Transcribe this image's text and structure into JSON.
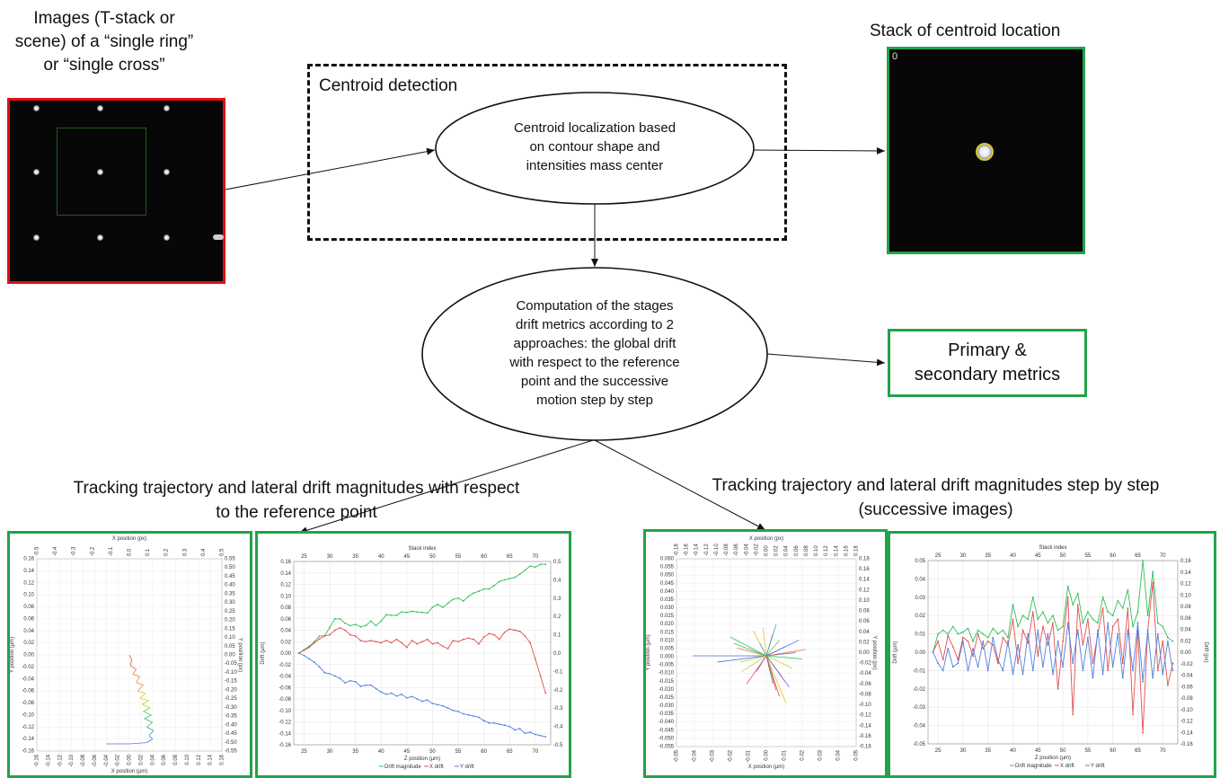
{
  "labels": {
    "input_images": [
      "Images (T-stack or",
      "scene) of a “single ring”",
      "or “single cross”"
    ],
    "centroid_stack": "Stack of centroid location",
    "centroid_detection": "Centroid detection",
    "localization": [
      "Centroid localization based",
      "on contour shape and",
      "intensities mass center"
    ],
    "computation": [
      "Computation of the stages",
      "drift metrics according to 2",
      "approaches: the global drift",
      "with respect to the reference",
      "point and the successive",
      "motion step by step"
    ],
    "metrics": [
      "Primary &",
      "secondary metrics"
    ],
    "tracking_reference": [
      "Tracking trajectory and lateral drift magnitudes with respect",
      "to the reference point"
    ],
    "tracking_step": [
      "Tracking trajectory and lateral drift magnitudes step by step",
      "(successive images)"
    ],
    "frame_counter": "0"
  },
  "colors": {
    "red_border": "#e01010",
    "green_border": "#22a34a",
    "drift_magnitude": "#2fbf5a",
    "x_drift": "#e05050",
    "y_drift": "#4f7fe0"
  },
  "plots": {
    "scatter_ref": {
      "top_axis_label": "X position (px)",
      "bottom_axis_label": "X position (µm)",
      "left_axis_label": "Y position (µm)",
      "right_axis_label": "Y position (px)",
      "top_ticks": [
        "-0.5",
        "-0.4",
        "-0.3",
        "-0.2",
        "-0.1",
        "0.0",
        "0.1",
        "0.2",
        "0.3",
        "0.4",
        "0.5"
      ],
      "bottom_ticks": [
        "-0.16",
        "-0.14",
        "-0.12",
        "-0.10",
        "-0.08",
        "-0.06",
        "-0.04",
        "-0.02",
        "0.00",
        "0.02",
        "0.04",
        "0.06",
        "0.08",
        "0.10",
        "0.12",
        "0.14",
        "0.16"
      ],
      "left_ticks": [
        "0.16",
        "0.14",
        "0.12",
        "0.10",
        "0.08",
        "0.06",
        "0.04",
        "0.02",
        "0.00",
        "-0.02",
        "-0.04",
        "-0.06",
        "-0.08",
        "-0.10",
        "-0.12",
        "-0.14",
        "-0.16"
      ],
      "right_ticks": [
        "0.55",
        "0.50",
        "0.45",
        "0.40",
        "0.35",
        "0.30",
        "0.25",
        "0.20",
        "0.15",
        "0.10",
        "0.05",
        "0.00",
        "-0.05",
        "-0.10",
        "-0.15",
        "-0.20",
        "-0.25",
        "-0.30",
        "-0.35",
        "-0.40",
        "-0.45",
        "-0.50",
        "-0.55"
      ]
    },
    "line_ref": {
      "top_axis_label": "Stack index",
      "bottom_axis_label": "Z position (µm)",
      "left_axis_label": "Drift (µm)",
      "right_axis_label": "Drift (px)",
      "x_ticks": [
        "25",
        "30",
        "35",
        "40",
        "45",
        "50",
        "55",
        "60",
        "65",
        "70"
      ],
      "left_ticks": [
        "0.16",
        "0.14",
        "0.12",
        "0.10",
        "0.08",
        "0.06",
        "0.04",
        "0.02",
        "0.00",
        "-0.02",
        "-0.04",
        "-0.06",
        "-0.08",
        "-0.10",
        "-0.12",
        "-0.14",
        "-0.16"
      ],
      "right_ticks": [
        "0.5",
        "0.4",
        "0.3",
        "0.2",
        "0.1",
        "0.0",
        "-0.1",
        "-0.2",
        "-0.3",
        "-0.4",
        "-0.5"
      ],
      "legend": [
        "Drift magnitude",
        "X drift",
        "Y drift"
      ]
    },
    "scatter_step": {
      "top_axis_label": "X position (px)",
      "bottom_axis_label": "X position (µm)",
      "left_axis_label": "Y position (µm)",
      "right_axis_label": "Y position (px)",
      "top_ticks": [
        "-0.18",
        "-0.16",
        "-0.14",
        "-0.12",
        "-0.10",
        "-0.08",
        "-0.06",
        "-0.04",
        "-0.02",
        "0.00",
        "0.02",
        "0.04",
        "0.06",
        "0.08",
        "0.10",
        "0.12",
        "0.14",
        "0.16",
        "0.18"
      ],
      "bottom_ticks": [
        "-0.05",
        "-0.04",
        "-0.03",
        "-0.02",
        "-0.01",
        "0.00",
        "0.01",
        "0.02",
        "0.03",
        "0.04",
        "0.05"
      ],
      "left_ticks": [
        "0.060",
        "0.055",
        "0.050",
        "0.045",
        "0.040",
        "0.035",
        "0.030",
        "0.025",
        "0.020",
        "0.015",
        "0.010",
        "0.005",
        "0.000",
        "-0.005",
        "-0.010",
        "-0.015",
        "-0.020",
        "-0.025",
        "-0.030",
        "-0.035",
        "-0.040",
        "-0.045",
        "-0.050",
        "-0.055"
      ],
      "right_ticks": [
        "0.18",
        "0.16",
        "0.14",
        "0.12",
        "0.10",
        "0.08",
        "0.06",
        "0.04",
        "0.02",
        "0.00",
        "-0.02",
        "-0.04",
        "-0.06",
        "-0.08",
        "-0.10",
        "-0.12",
        "-0.14",
        "-0.16",
        "-0.18"
      ]
    },
    "line_step": {
      "top_axis_label": "Stack index",
      "bottom_axis_label": "Z position (µm)",
      "left_axis_label": "Drift (µm)",
      "right_axis_label": "Drift (px)",
      "x_ticks": [
        "25",
        "30",
        "35",
        "40",
        "45",
        "50",
        "55",
        "60",
        "65",
        "70"
      ],
      "left_ticks": [
        "0.05",
        "0.04",
        "0.03",
        "0.02",
        "0.01",
        "0.00",
        "-0.01",
        "-0.02",
        "-0.03",
        "-0.04",
        "-0.05"
      ],
      "right_ticks": [
        "0.16",
        "0.14",
        "0.12",
        "0.10",
        "0.08",
        "0.06",
        "0.04",
        "0.02",
        "0.00",
        "-0.02",
        "-0.04",
        "-0.06",
        "-0.08",
        "-0.10",
        "-0.12",
        "-0.14",
        "-0.16"
      ],
      "legend": [
        "Drift magnitude",
        "X drift",
        "Y drift"
      ]
    }
  },
  "chart_data": [
    {
      "type": "line",
      "x": [
        24,
        25,
        26,
        27,
        28,
        29,
        30,
        31,
        32,
        33,
        34,
        35,
        36,
        37,
        38,
        39,
        40,
        41,
        42,
        43,
        44,
        45,
        46,
        47,
        48,
        49,
        50,
        51,
        52,
        53,
        54,
        55,
        56,
        57,
        58,
        59,
        60,
        61,
        62,
        63,
        64,
        65,
        66,
        67,
        68,
        69,
        70,
        71,
        72
      ],
      "ylim": [
        -0.16,
        0.16
      ],
      "series": [
        {
          "name": "Drift magnitude",
          "values": [
            0.0,
            0.006,
            0.012,
            0.02,
            0.03,
            0.03,
            0.045,
            0.06,
            0.06,
            0.052,
            0.048,
            0.05,
            0.046,
            0.048,
            0.056,
            0.048,
            0.056,
            0.067,
            0.066,
            0.066,
            0.072,
            0.071,
            0.073,
            0.072,
            0.071,
            0.07,
            0.08,
            0.085,
            0.08,
            0.087,
            0.094,
            0.096,
            0.091,
            0.099,
            0.105,
            0.108,
            0.112,
            0.112,
            0.118,
            0.125,
            0.128,
            0.13,
            0.132,
            0.138,
            0.145,
            0.152,
            0.15,
            0.155,
            0.155
          ]
        },
        {
          "name": "X drift",
          "values": [
            0.0,
            0.005,
            0.01,
            0.018,
            0.025,
            0.03,
            0.032,
            0.04,
            0.044,
            0.04,
            0.032,
            0.03,
            0.022,
            0.02,
            0.022,
            0.02,
            0.018,
            0.022,
            0.018,
            0.024,
            0.018,
            0.01,
            0.022,
            0.016,
            0.02,
            0.024,
            0.016,
            0.018,
            0.012,
            0.008,
            0.022,
            0.02,
            0.024,
            0.026,
            0.024,
            0.016,
            0.028,
            0.034,
            0.032,
            0.024,
            0.036,
            0.042,
            0.04,
            0.038,
            0.03,
            0.018,
            -0.01,
            -0.04,
            -0.07
          ]
        },
        {
          "name": "Y drift",
          "values": [
            0.0,
            -0.004,
            -0.01,
            -0.016,
            -0.024,
            -0.034,
            -0.036,
            -0.04,
            -0.044,
            -0.052,
            -0.048,
            -0.05,
            -0.058,
            -0.056,
            -0.056,
            -0.062,
            -0.068,
            -0.072,
            -0.07,
            -0.075,
            -0.072,
            -0.078,
            -0.076,
            -0.08,
            -0.084,
            -0.082,
            -0.088,
            -0.09,
            -0.092,
            -0.096,
            -0.1,
            -0.102,
            -0.106,
            -0.108,
            -0.11,
            -0.112,
            -0.118,
            -0.122,
            -0.122,
            -0.124,
            -0.126,
            -0.128,
            -0.134,
            -0.132,
            -0.14,
            -0.138,
            -0.142,
            -0.144,
            -0.146
          ]
        }
      ]
    },
    {
      "type": "line",
      "x": [
        24,
        25,
        26,
        27,
        28,
        29,
        30,
        31,
        32,
        33,
        34,
        35,
        36,
        37,
        38,
        39,
        40,
        41,
        42,
        43,
        44,
        45,
        46,
        47,
        48,
        49,
        50,
        51,
        52,
        53,
        54,
        55,
        56,
        57,
        58,
        59,
        60,
        61,
        62,
        63,
        64,
        65,
        66,
        67,
        68,
        69,
        70,
        71,
        72
      ],
      "ylim": [
        -0.05,
        0.05
      ],
      "series": [
        {
          "name": "Drift magnitude",
          "values": [
            0.0,
            0.01,
            0.012,
            0.01,
            0.014,
            0.01,
            0.011,
            0.013,
            0.006,
            0.012,
            0.01,
            0.008,
            0.013,
            0.01,
            0.012,
            0.008,
            0.026,
            0.014,
            0.02,
            0.018,
            0.03,
            0.018,
            0.022,
            0.016,
            0.02,
            0.012,
            0.014,
            0.036,
            0.026,
            0.032,
            0.016,
            0.022,
            0.018,
            0.016,
            0.03,
            0.022,
            0.02,
            0.028,
            0.024,
            0.034,
            0.014,
            0.022,
            0.05,
            0.02,
            0.044,
            0.016,
            0.014,
            0.008,
            0.006
          ]
        },
        {
          "name": "X drift",
          "values": [
            0.0,
            0.006,
            -0.004,
            0.009,
            0.003,
            -0.004,
            0.008,
            0.006,
            -0.002,
            0.01,
            0.002,
            0.006,
            0.004,
            -0.006,
            0.008,
            0.004,
            0.018,
            -0.006,
            0.012,
            0.005,
            0.022,
            -0.002,
            0.014,
            0.004,
            0.016,
            -0.02,
            0.006,
            0.03,
            -0.034,
            0.026,
            0.004,
            0.018,
            -0.006,
            0.01,
            0.024,
            -0.01,
            0.014,
            0.018,
            -0.006,
            0.024,
            -0.034,
            0.012,
            -0.044,
            0.012,
            0.038,
            -0.01,
            0.006,
            -0.018,
            -0.006
          ]
        },
        {
          "name": "Y drift",
          "values": [
            0.0,
            -0.006,
            -0.01,
            0.002,
            -0.008,
            -0.006,
            0.006,
            -0.01,
            0.002,
            -0.008,
            0.006,
            -0.01,
            0.008,
            -0.004,
            -0.01,
            0.006,
            -0.012,
            0.004,
            -0.012,
            0.01,
            -0.01,
            0.012,
            -0.008,
            0.01,
            -0.012,
            0.006,
            -0.008,
            0.016,
            -0.006,
            0.012,
            -0.01,
            0.008,
            -0.014,
            0.012,
            -0.012,
            0.016,
            -0.008,
            0.01,
            -0.014,
            0.012,
            -0.01,
            0.016,
            -0.016,
            0.012,
            -0.014,
            0.01,
            -0.012,
            0.006,
            -0.01
          ]
        }
      ]
    }
  ]
}
